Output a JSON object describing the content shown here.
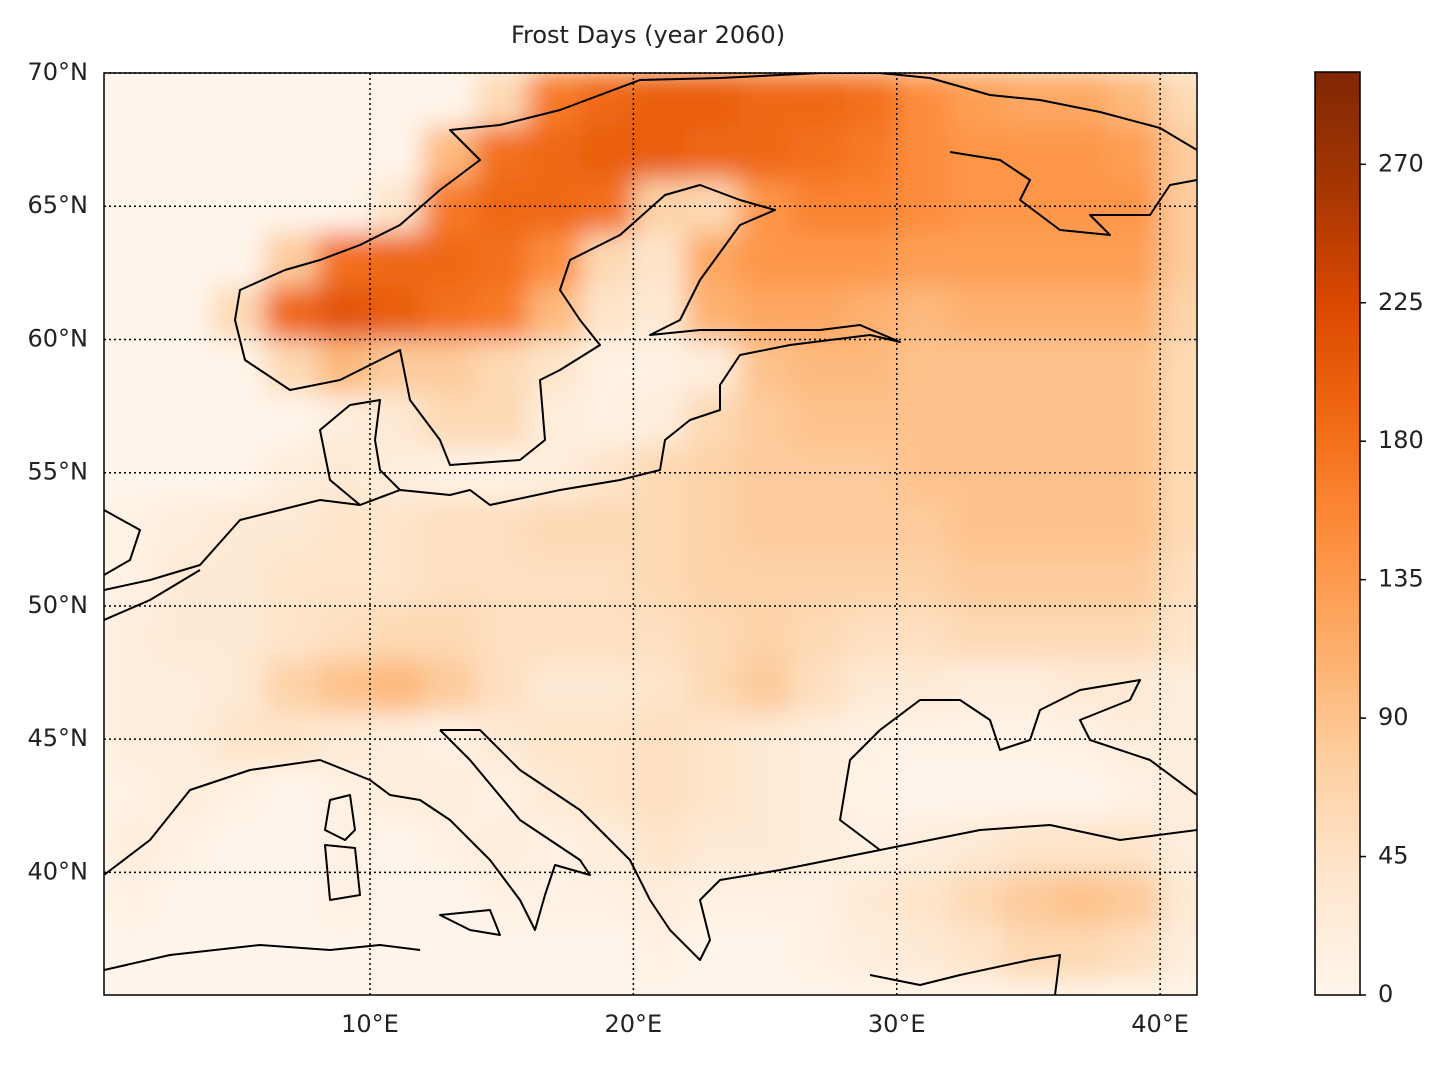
{
  "chart_data": {
    "type": "map",
    "title": "Frost Days (year 2060)",
    "xlim": [
      -0.1,
      41.4
    ],
    "ylim": [
      35.4,
      70
    ],
    "xticks": [
      {
        "value": 10,
        "label": "10°E"
      },
      {
        "value": 20,
        "label": "20°E"
      },
      {
        "value": 30,
        "label": "30°E"
      },
      {
        "value": 40,
        "label": "40°E"
      }
    ],
    "yticks": [
      {
        "value": 40,
        "label": "40°N"
      },
      {
        "value": 45,
        "label": "45°N"
      },
      {
        "value": 50,
        "label": "50°N"
      },
      {
        "value": 55,
        "label": "55°N"
      },
      {
        "value": 60,
        "label": "60°N"
      },
      {
        "value": 65,
        "label": "65°N"
      },
      {
        "value": 70,
        "label": "70°N"
      }
    ],
    "grid": true,
    "lon": [
      1,
      3,
      5,
      7,
      9,
      11,
      13,
      15,
      17,
      19,
      21,
      23,
      25,
      27,
      29,
      31,
      33,
      35,
      37,
      39,
      41
    ],
    "lat": [
      69,
      67,
      65,
      63,
      61,
      59,
      57,
      55,
      53,
      51,
      49,
      47,
      45,
      43,
      41,
      39,
      37
    ],
    "values": [
      [
        0,
        0,
        0,
        0,
        0,
        0,
        0,
        60,
        170,
        190,
        200,
        200,
        190,
        190,
        180,
        150,
        130,
        120,
        120,
        100,
        60
      ],
      [
        0,
        0,
        0,
        0,
        0,
        0,
        100,
        180,
        190,
        200,
        200,
        190,
        190,
        180,
        170,
        150,
        140,
        140,
        140,
        130,
        80
      ],
      [
        0,
        0,
        0,
        0,
        0,
        40,
        170,
        190,
        190,
        180,
        70,
        60,
        140,
        160,
        160,
        150,
        140,
        140,
        140,
        140,
        80
      ],
      [
        0,
        0,
        0,
        80,
        180,
        190,
        190,
        180,
        150,
        60,
        40,
        120,
        140,
        140,
        140,
        130,
        130,
        130,
        130,
        130,
        80
      ],
      [
        0,
        0,
        60,
        190,
        210,
        200,
        180,
        170,
        100,
        40,
        30,
        110,
        120,
        120,
        110,
        100,
        110,
        110,
        110,
        110,
        70
      ],
      [
        0,
        0,
        0,
        60,
        100,
        80,
        80,
        60,
        40,
        10,
        10,
        20,
        90,
        100,
        100,
        90,
        90,
        90,
        90,
        90,
        60
      ],
      [
        0,
        0,
        0,
        0,
        20,
        30,
        60,
        60,
        20,
        10,
        20,
        60,
        80,
        90,
        90,
        90,
        90,
        90,
        90,
        90,
        60
      ],
      [
        0,
        0,
        0,
        20,
        30,
        20,
        10,
        10,
        20,
        40,
        60,
        70,
        80,
        80,
        80,
        90,
        90,
        90,
        90,
        90,
        60
      ],
      [
        10,
        20,
        30,
        30,
        40,
        40,
        50,
        50,
        60,
        60,
        60,
        70,
        80,
        80,
        80,
        80,
        90,
        90,
        90,
        90,
        60
      ],
      [
        10,
        30,
        30,
        40,
        40,
        40,
        50,
        50,
        50,
        50,
        60,
        70,
        70,
        70,
        70,
        70,
        80,
        80,
        80,
        80,
        50
      ],
      [
        20,
        30,
        30,
        40,
        50,
        60,
        60,
        50,
        50,
        50,
        50,
        60,
        70,
        60,
        50,
        50,
        60,
        60,
        60,
        60,
        40
      ],
      [
        20,
        20,
        30,
        70,
        90,
        100,
        80,
        50,
        30,
        30,
        40,
        60,
        80,
        50,
        30,
        30,
        20,
        20,
        30,
        30,
        20
      ],
      [
        20,
        20,
        40,
        40,
        30,
        20,
        10,
        30,
        40,
        40,
        50,
        40,
        30,
        20,
        10,
        5,
        5,
        5,
        10,
        20,
        20
      ],
      [
        10,
        20,
        10,
        0,
        10,
        20,
        20,
        10,
        30,
        40,
        50,
        40,
        30,
        20,
        5,
        0,
        0,
        0,
        0,
        10,
        20
      ],
      [
        20,
        10,
        0,
        0,
        10,
        0,
        10,
        20,
        10,
        20,
        40,
        30,
        30,
        20,
        10,
        20,
        30,
        40,
        40,
        40,
        20
      ],
      [
        10,
        0,
        0,
        0,
        10,
        0,
        0,
        10,
        10,
        10,
        20,
        10,
        10,
        10,
        30,
        40,
        60,
        80,
        90,
        80,
        30
      ],
      [
        0,
        0,
        0,
        0,
        0,
        0,
        0,
        0,
        0,
        0,
        10,
        0,
        0,
        10,
        20,
        30,
        40,
        60,
        60,
        50,
        20
      ]
    ],
    "colormap": [
      "#fff5eb",
      "#fee6ce",
      "#fdd0a2",
      "#fdae6b",
      "#fd8d3c",
      "#f16913",
      "#d94801",
      "#a63603",
      "#7f2704"
    ],
    "colorbar": {
      "lim": [
        0,
        300
      ],
      "ticks": [
        0,
        45,
        90,
        135,
        180,
        225,
        270
      ]
    }
  }
}
